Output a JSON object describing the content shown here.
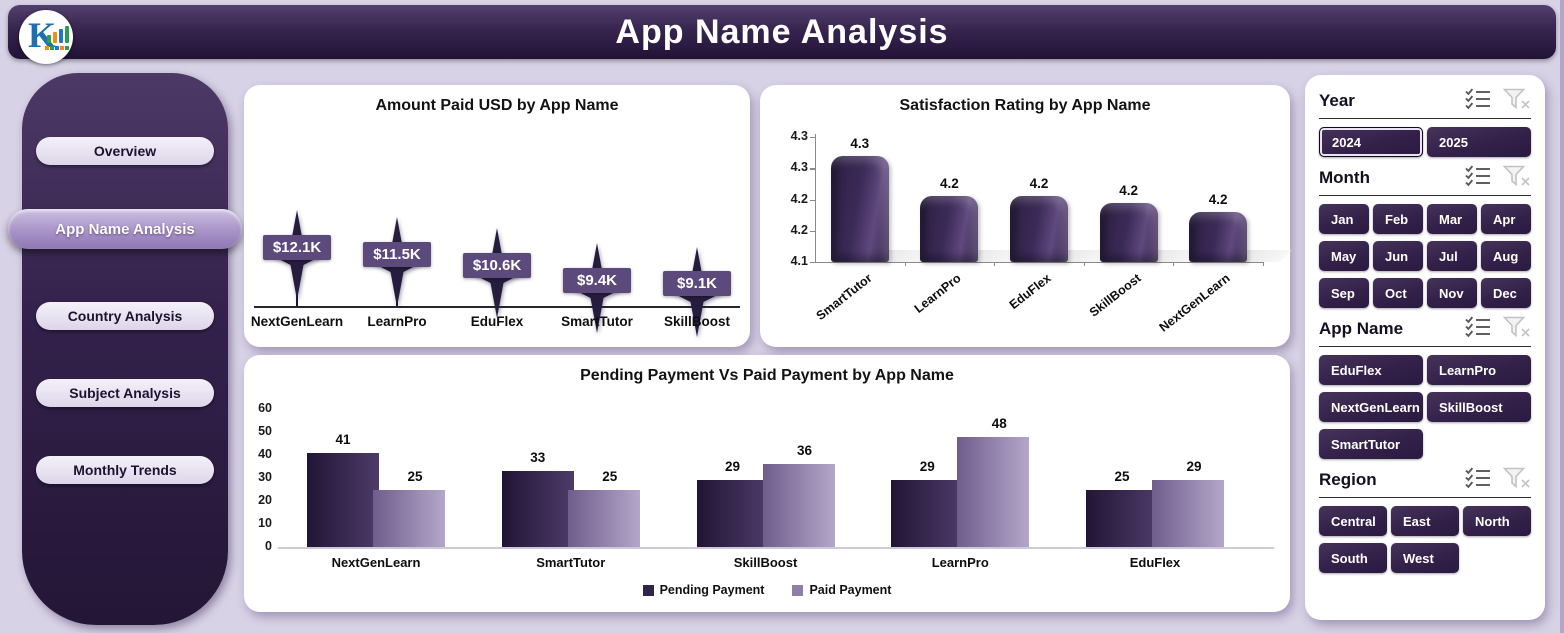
{
  "header": {
    "title": "App Name Analysis",
    "logo": "KR Analytics logo"
  },
  "sidebar": {
    "items": [
      {
        "label": "Overview",
        "active": false
      },
      {
        "label": "App Name Analysis",
        "active": true
      },
      {
        "label": "Country Analysis",
        "active": false
      },
      {
        "label": "Subject Analysis",
        "active": false
      },
      {
        "label": "Monthly Trends",
        "active": false
      }
    ]
  },
  "chart_data": [
    {
      "name": "amount-paid",
      "type": "bar",
      "variant": "lollipop-star",
      "title": "Amount Paid USD by App Name",
      "categories": [
        "NextGenLearn",
        "LearnPro",
        "EduFlex",
        "SmartTutor",
        "SkillBoost"
      ],
      "values": [
        12.1,
        11.5,
        10.6,
        9.4,
        9.1
      ],
      "labels": [
        "$12.1K",
        "$11.5K",
        "$10.6K",
        "$9.4K",
        "$9.1K"
      ],
      "unit": "USD (thousands)",
      "grid": false,
      "legend_position": "none"
    },
    {
      "name": "satisfaction-rating",
      "type": "bar",
      "variant": "3d-rounded",
      "title": "Satisfaction Rating by App Name",
      "categories": [
        "SmartTutor",
        "LearnPro",
        "EduFlex",
        "SkillBoost",
        "NextGenLearn"
      ],
      "values": [
        4.3,
        4.2,
        4.2,
        4.2,
        4.2
      ],
      "estimated_values": [
        4.27,
        4.205,
        4.205,
        4.195,
        4.18
      ],
      "ylim": [
        4.1,
        4.3
      ],
      "yticks": [
        "4.3",
        "4.3",
        "4.2",
        "4.2",
        "4.1"
      ],
      "grid": false,
      "legend_position": "none"
    },
    {
      "name": "pending-vs-paid",
      "type": "bar",
      "variant": "grouped",
      "title": "Pending Payment Vs Paid Payment by App Name",
      "categories": [
        "NextGenLearn",
        "SmartTutor",
        "SkillBoost",
        "LearnPro",
        "EduFlex"
      ],
      "series": [
        {
          "name": "Pending Payment",
          "values": [
            41,
            33,
            29,
            29,
            25
          ]
        },
        {
          "name": "Paid Payment",
          "values": [
            25,
            25,
            36,
            48,
            29
          ]
        }
      ],
      "ylim": [
        0,
        60
      ],
      "yticks": [
        0,
        10,
        20,
        30,
        40,
        50,
        60
      ],
      "grid": false,
      "legend_position": "bottom"
    }
  ],
  "slicers": [
    {
      "title": "Year",
      "columns": 2,
      "options": [
        "2024",
        "2025"
      ],
      "selected": [
        "2024"
      ]
    },
    {
      "title": "Month",
      "columns": 4,
      "options": [
        "Jan",
        "Feb",
        "Mar",
        "Apr",
        "May",
        "Jun",
        "Jul",
        "Aug",
        "Sep",
        "Oct",
        "Nov",
        "Dec"
      ],
      "selected": []
    },
    {
      "title": "App Name",
      "columns": 2,
      "options": [
        "EduFlex",
        "LearnPro",
        "NextGenLearn",
        "SkillBoost",
        "SmartTutor"
      ],
      "selected": []
    },
    {
      "title": "Region",
      "columns": 3,
      "options": [
        "Central",
        "East",
        "North",
        "South",
        "West"
      ],
      "selected": []
    }
  ],
  "icons": {
    "multiselect": "multiselect-icon",
    "clear_filter": "clear-filter-icon"
  },
  "colors": {
    "page_bg": "#d8d2e6",
    "header_purple": "#37254f",
    "card_bg": "#ffffff",
    "star_fill": "#261c3d",
    "star_label_bg": "#5d4a7c",
    "bar3d_fill": "#3b2a57",
    "pending_dark": "#322348",
    "paid_light": "#8d7fa8",
    "slicer_button": "#33214a",
    "active_nav": "#a993c8"
  }
}
